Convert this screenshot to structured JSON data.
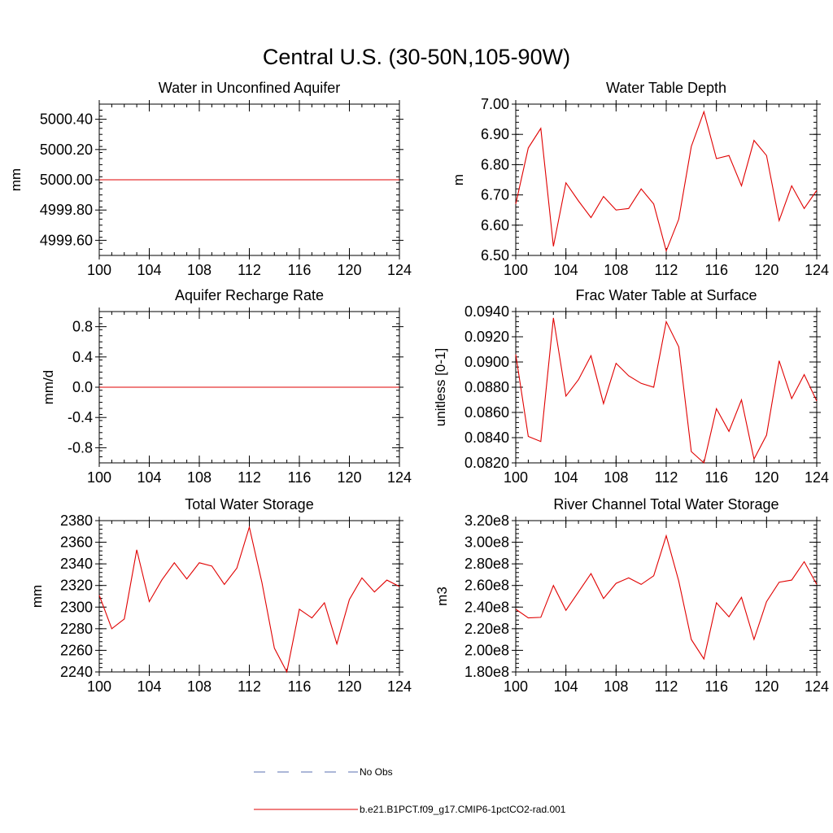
{
  "title": "Central U.S. (30-50N,105-90W)",
  "legend": [
    {
      "label": "No Obs",
      "color": "#5a6fb0",
      "style": "dashed"
    },
    {
      "label": "b.e21.B1PCT.f09_g17.CMIP6-1pctCO2-rad.001",
      "color": "#e00000",
      "style": "solid"
    }
  ],
  "chart_data": [
    {
      "type": "line",
      "title": "Water in Unconfined Aquifer",
      "ylabel": "mm",
      "xlim": [
        100,
        124
      ],
      "ylim": [
        4999.5,
        5000.5
      ],
      "xticks": [
        100,
        104,
        108,
        112,
        116,
        120,
        124
      ],
      "yticks": [
        4999.6,
        4999.8,
        5000.0,
        5000.2,
        5000.4
      ],
      "ytick_labels": [
        "4999.60",
        "4999.80",
        "5000.00",
        "5000.20",
        "5000.40"
      ],
      "series": [
        {
          "color": "#e00000",
          "x": [
            100,
            101,
            102,
            103,
            104,
            105,
            106,
            107,
            108,
            109,
            110,
            111,
            112,
            113,
            114,
            115,
            116,
            117,
            118,
            119,
            120,
            121,
            122,
            123,
            124
          ],
          "y": [
            5000,
            5000,
            5000,
            5000,
            5000,
            5000,
            5000,
            5000,
            5000,
            5000,
            5000,
            5000,
            5000,
            5000,
            5000,
            5000,
            5000,
            5000,
            5000,
            5000,
            5000,
            5000,
            5000,
            5000,
            5000
          ]
        }
      ]
    },
    {
      "type": "line",
      "title": "Water Table Depth",
      "ylabel": "m",
      "xlim": [
        100,
        124
      ],
      "ylim": [
        6.5,
        7.0
      ],
      "xticks": [
        100,
        104,
        108,
        112,
        116,
        120,
        124
      ],
      "yticks": [
        6.5,
        6.6,
        6.7,
        6.8,
        6.9,
        7.0
      ],
      "ytick_labels": [
        "6.50",
        "6.60",
        "6.70",
        "6.80",
        "6.90",
        "7.00"
      ],
      "series": [
        {
          "color": "#e00000",
          "x": [
            100,
            101,
            102,
            103,
            104,
            105,
            106,
            107,
            108,
            109,
            110,
            111,
            112,
            113,
            114,
            115,
            116,
            117,
            118,
            119,
            120,
            121,
            122,
            123,
            124
          ],
          "y": [
            6.67,
            6.855,
            6.92,
            6.53,
            6.74,
            6.68,
            6.625,
            6.695,
            6.65,
            6.655,
            6.72,
            6.67,
            6.515,
            6.62,
            6.86,
            6.975,
            6.82,
            6.83,
            6.73,
            6.88,
            6.83,
            6.615,
            6.73,
            6.655,
            6.715
          ]
        }
      ]
    },
    {
      "type": "line",
      "title": "Aquifer Recharge Rate",
      "ylabel": "mm/d",
      "xlim": [
        100,
        124
      ],
      "ylim": [
        -1.0,
        1.0
      ],
      "xticks": [
        100,
        104,
        108,
        112,
        116,
        120,
        124
      ],
      "yticks": [
        -0.8,
        -0.4,
        0.0,
        0.4,
        0.8
      ],
      "ytick_labels": [
        "-0.8",
        "-0.4",
        "0.0",
        "0.4",
        "0.8"
      ],
      "series": [
        {
          "color": "#e00000",
          "x": [
            100,
            101,
            102,
            103,
            104,
            105,
            106,
            107,
            108,
            109,
            110,
            111,
            112,
            113,
            114,
            115,
            116,
            117,
            118,
            119,
            120,
            121,
            122,
            123,
            124
          ],
          "y": [
            0,
            0,
            0,
            0,
            0,
            0,
            0,
            0,
            0,
            0,
            0,
            0,
            0,
            0,
            0,
            0,
            0,
            0,
            0,
            0,
            0,
            0,
            0,
            0,
            0
          ]
        }
      ]
    },
    {
      "type": "line",
      "title": "Frac Water Table at Surface",
      "ylabel": "unitless [0-1]",
      "xlim": [
        100,
        124
      ],
      "ylim": [
        0.082,
        0.094
      ],
      "xticks": [
        100,
        104,
        108,
        112,
        116,
        120,
        124
      ],
      "yticks": [
        0.082,
        0.084,
        0.086,
        0.088,
        0.09,
        0.092,
        0.094
      ],
      "ytick_labels": [
        "0.0820",
        "0.0840",
        "0.0860",
        "0.0880",
        "0.0900",
        "0.0920",
        "0.0940"
      ],
      "series": [
        {
          "color": "#e00000",
          "x": [
            100,
            101,
            102,
            103,
            104,
            105,
            106,
            107,
            108,
            109,
            110,
            111,
            112,
            113,
            114,
            115,
            116,
            117,
            118,
            119,
            120,
            121,
            122,
            123,
            124
          ],
          "y": [
            0.0906,
            0.0841,
            0.0837,
            0.0935,
            0.0873,
            0.0886,
            0.0905,
            0.0867,
            0.0899,
            0.0889,
            0.0883,
            0.088,
            0.0932,
            0.0912,
            0.0829,
            0.082,
            0.0863,
            0.0845,
            0.087,
            0.0823,
            0.0842,
            0.0901,
            0.0871,
            0.089,
            0.0869
          ]
        }
      ]
    },
    {
      "type": "line",
      "title": "Total Water Storage",
      "ylabel": "mm",
      "xlim": [
        100,
        124
      ],
      "ylim": [
        2240,
        2380
      ],
      "xticks": [
        100,
        104,
        108,
        112,
        116,
        120,
        124
      ],
      "yticks": [
        2240,
        2260,
        2280,
        2300,
        2320,
        2340,
        2360,
        2380
      ],
      "ytick_labels": [
        "2240",
        "2260",
        "2280",
        "2300",
        "2320",
        "2340",
        "2360",
        "2380"
      ],
      "series": [
        {
          "color": "#e00000",
          "x": [
            100,
            101,
            102,
            103,
            104,
            105,
            106,
            107,
            108,
            109,
            110,
            111,
            112,
            113,
            114,
            115,
            116,
            117,
            118,
            119,
            120,
            121,
            122,
            123,
            124
          ],
          "y": [
            2311,
            2280,
            2289,
            2353,
            2305,
            2325,
            2341,
            2326,
            2341,
            2338,
            2321,
            2336,
            2374,
            2323,
            2262,
            2240,
            2298,
            2290,
            2304,
            2266,
            2307,
            2327,
            2314,
            2325,
            2319
          ]
        }
      ]
    },
    {
      "type": "line",
      "title": "River Channel Total Water Storage",
      "ylabel": "m3",
      "xlim": [
        100,
        124
      ],
      "ylim": [
        180000000.0,
        320000000.0
      ],
      "xticks": [
        100,
        104,
        108,
        112,
        116,
        120,
        124
      ],
      "yticks": [
        180000000.0,
        200000000.0,
        220000000.0,
        240000000.0,
        260000000.0,
        280000000.0,
        300000000.0,
        320000000.0
      ],
      "ytick_labels": [
        "1.80e8",
        "2.00e8",
        "2.20e8",
        "2.40e8",
        "2.60e8",
        "2.80e8",
        "3.00e8",
        "3.20e8"
      ],
      "series": [
        {
          "color": "#e00000",
          "x": [
            100,
            101,
            102,
            103,
            104,
            105,
            106,
            107,
            108,
            109,
            110,
            111,
            112,
            113,
            114,
            115,
            116,
            117,
            118,
            119,
            120,
            121,
            122,
            123,
            124
          ],
          "y": [
            238000000.0,
            230000000.0,
            230500000.0,
            260000000.0,
            237000000.0,
            254000000.0,
            271000000.0,
            248000000.0,
            262000000.0,
            267000000.0,
            261000000.0,
            269000000.0,
            306000000.0,
            264000000.0,
            210000000.0,
            192000000.0,
            244000000.0,
            231000000.0,
            249000000.0,
            210000000.0,
            245000000.0,
            263000000.0,
            265000000.0,
            282000000.0,
            261000000.0
          ]
        }
      ]
    }
  ]
}
